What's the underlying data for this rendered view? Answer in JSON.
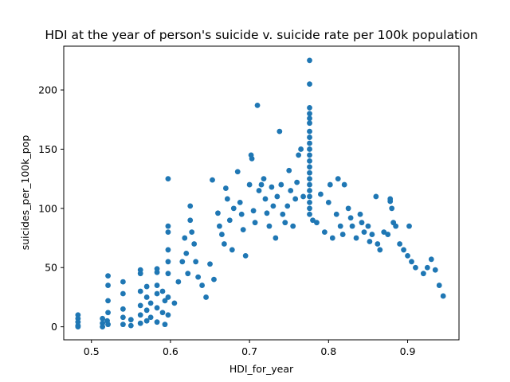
{
  "chart_data": {
    "type": "scatter",
    "title": "HDI at the year of person's suicide v. suicide rate per 100k population",
    "xlabel": "HDI_for_year",
    "ylabel": "suicides_per_100k_pop",
    "xlim": [
      0.465,
      0.965
    ],
    "ylim": [
      -11,
      237
    ],
    "x_ticks": [
      0.5,
      0.6,
      0.7,
      0.8,
      0.9
    ],
    "x_tick_labels": [
      "0.5",
      "0.6",
      "0.7",
      "0.8",
      "0.9"
    ],
    "y_ticks": [
      0,
      50,
      100,
      150,
      200
    ],
    "y_tick_labels": [
      "0",
      "50",
      "100",
      "150",
      "200"
    ],
    "grid": false,
    "color": "#1f77b4",
    "points": [
      [
        0.483,
        10
      ],
      [
        0.483,
        7
      ],
      [
        0.483,
        4
      ],
      [
        0.483,
        1
      ],
      [
        0.483,
        0
      ],
      [
        0.514,
        7
      ],
      [
        0.514,
        3
      ],
      [
        0.514,
        0
      ],
      [
        0.52,
        5
      ],
      [
        0.521,
        43
      ],
      [
        0.521,
        35
      ],
      [
        0.521,
        22
      ],
      [
        0.521,
        12
      ],
      [
        0.521,
        2
      ],
      [
        0.54,
        38
      ],
      [
        0.54,
        28
      ],
      [
        0.54,
        15
      ],
      [
        0.54,
        8
      ],
      [
        0.54,
        2
      ],
      [
        0.55,
        6
      ],
      [
        0.55,
        1
      ],
      [
        0.562,
        48
      ],
      [
        0.562,
        45
      ],
      [
        0.562,
        30
      ],
      [
        0.562,
        18
      ],
      [
        0.562,
        10
      ],
      [
        0.562,
        3
      ],
      [
        0.57,
        34
      ],
      [
        0.57,
        25
      ],
      [
        0.57,
        14
      ],
      [
        0.57,
        5
      ],
      [
        0.575,
        20
      ],
      [
        0.575,
        8
      ],
      [
        0.583,
        49
      ],
      [
        0.583,
        46
      ],
      [
        0.583,
        35
      ],
      [
        0.583,
        28
      ],
      [
        0.583,
        16
      ],
      [
        0.583,
        4
      ],
      [
        0.59,
        30
      ],
      [
        0.59,
        12
      ],
      [
        0.593,
        22
      ],
      [
        0.593,
        2
      ],
      [
        0.597,
        125
      ],
      [
        0.597,
        85
      ],
      [
        0.597,
        80
      ],
      [
        0.597,
        65
      ],
      [
        0.597,
        55
      ],
      [
        0.597,
        45
      ],
      [
        0.597,
        25
      ],
      [
        0.597,
        10
      ],
      [
        0.605,
        20
      ],
      [
        0.61,
        38
      ],
      [
        0.615,
        55
      ],
      [
        0.618,
        75
      ],
      [
        0.62,
        62
      ],
      [
        0.622,
        45
      ],
      [
        0.625,
        102
      ],
      [
        0.625,
        90
      ],
      [
        0.627,
        80
      ],
      [
        0.63,
        70
      ],
      [
        0.632,
        55
      ],
      [
        0.635,
        42
      ],
      [
        0.64,
        35
      ],
      [
        0.645,
        25
      ],
      [
        0.65,
        53
      ],
      [
        0.653,
        124
      ],
      [
        0.655,
        40
      ],
      [
        0.66,
        96
      ],
      [
        0.662,
        85
      ],
      [
        0.665,
        78
      ],
      [
        0.668,
        70
      ],
      [
        0.67,
        117
      ],
      [
        0.672,
        108
      ],
      [
        0.675,
        90
      ],
      [
        0.678,
        65
      ],
      [
        0.68,
        100
      ],
      [
        0.685,
        131
      ],
      [
        0.688,
        105
      ],
      [
        0.69,
        95
      ],
      [
        0.692,
        82
      ],
      [
        0.695,
        60
      ],
      [
        0.7,
        120
      ],
      [
        0.702,
        145
      ],
      [
        0.703,
        142
      ],
      [
        0.705,
        98
      ],
      [
        0.707,
        88
      ],
      [
        0.71,
        187
      ],
      [
        0.712,
        115
      ],
      [
        0.715,
        120
      ],
      [
        0.718,
        125
      ],
      [
        0.72,
        108
      ],
      [
        0.722,
        96
      ],
      [
        0.725,
        85
      ],
      [
        0.728,
        118
      ],
      [
        0.73,
        102
      ],
      [
        0.733,
        75
      ],
      [
        0.735,
        110
      ],
      [
        0.738,
        165
      ],
      [
        0.74,
        120
      ],
      [
        0.742,
        95
      ],
      [
        0.745,
        88
      ],
      [
        0.748,
        102
      ],
      [
        0.75,
        132
      ],
      [
        0.752,
        115
      ],
      [
        0.755,
        85
      ],
      [
        0.758,
        108
      ],
      [
        0.76,
        122
      ],
      [
        0.762,
        145
      ],
      [
        0.765,
        150
      ],
      [
        0.768,
        110
      ],
      [
        0.776,
        225
      ],
      [
        0.776,
        205
      ],
      [
        0.776,
        185
      ],
      [
        0.776,
        180
      ],
      [
        0.776,
        176
      ],
      [
        0.776,
        172
      ],
      [
        0.776,
        165
      ],
      [
        0.776,
        160
      ],
      [
        0.776,
        155
      ],
      [
        0.776,
        150
      ],
      [
        0.776,
        145
      ],
      [
        0.776,
        140
      ],
      [
        0.776,
        135
      ],
      [
        0.776,
        130
      ],
      [
        0.776,
        125
      ],
      [
        0.776,
        120
      ],
      [
        0.776,
        115
      ],
      [
        0.776,
        110
      ],
      [
        0.776,
        105
      ],
      [
        0.776,
        100
      ],
      [
        0.776,
        95
      ],
      [
        0.78,
        90
      ],
      [
        0.785,
        88
      ],
      [
        0.79,
        112
      ],
      [
        0.795,
        80
      ],
      [
        0.8,
        105
      ],
      [
        0.802,
        120
      ],
      [
        0.805,
        75
      ],
      [
        0.81,
        95
      ],
      [
        0.812,
        125
      ],
      [
        0.815,
        85
      ],
      [
        0.818,
        78
      ],
      [
        0.82,
        120
      ],
      [
        0.825,
        100
      ],
      [
        0.828,
        92
      ],
      [
        0.83,
        85
      ],
      [
        0.835,
        75
      ],
      [
        0.84,
        95
      ],
      [
        0.842,
        88
      ],
      [
        0.845,
        80
      ],
      [
        0.85,
        85
      ],
      [
        0.852,
        72
      ],
      [
        0.855,
        78
      ],
      [
        0.86,
        110
      ],
      [
        0.862,
        70
      ],
      [
        0.865,
        65
      ],
      [
        0.87,
        80
      ],
      [
        0.875,
        78
      ],
      [
        0.878,
        106
      ],
      [
        0.878,
        108
      ],
      [
        0.88,
        100
      ],
      [
        0.882,
        88
      ],
      [
        0.885,
        85
      ],
      [
        0.89,
        70
      ],
      [
        0.895,
        65
      ],
      [
        0.9,
        60
      ],
      [
        0.902,
        85
      ],
      [
        0.905,
        55
      ],
      [
        0.91,
        50
      ],
      [
        0.92,
        45
      ],
      [
        0.925,
        50
      ],
      [
        0.93,
        57
      ],
      [
        0.935,
        48
      ],
      [
        0.94,
        35
      ],
      [
        0.945,
        26
      ]
    ]
  }
}
